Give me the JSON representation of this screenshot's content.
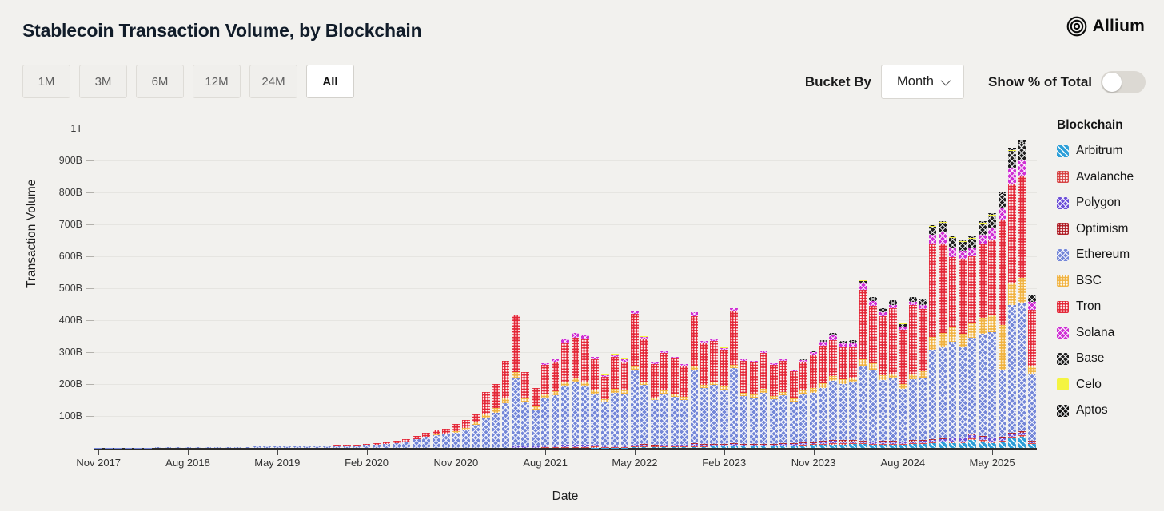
{
  "header": {
    "title": "Stablecoin Transaction Volume, by Blockchain",
    "brand": "Allium"
  },
  "toolbar": {
    "ranges": [
      "1M",
      "3M",
      "6M",
      "12M",
      "24M",
      "All"
    ],
    "active_range": "All",
    "bucket_by_label": "Bucket By",
    "bucket_value": "Month",
    "show_pct_label": "Show % of Total",
    "show_pct_on": false
  },
  "chart_data": {
    "type": "bar",
    "stacked": true,
    "title": "Stablecoin Transaction Volume, by Blockchain",
    "xlabel": "Date",
    "ylabel": "Transaction Volume",
    "y_unit": "billions_usd",
    "ylim": [
      0,
      1000
    ],
    "grid": true,
    "legend_title": "Blockchain",
    "legend_position": "right",
    "y_ticks": [
      {
        "value": 100,
        "label": "100B"
      },
      {
        "value": 200,
        "label": "200B"
      },
      {
        "value": 300,
        "label": "300B"
      },
      {
        "value": 400,
        "label": "400B"
      },
      {
        "value": 500,
        "label": "500B"
      },
      {
        "value": 600,
        "label": "600B"
      },
      {
        "value": 700,
        "label": "700B"
      },
      {
        "value": 800,
        "label": "800B"
      },
      {
        "value": 900,
        "label": "900B"
      },
      {
        "value": 1000,
        "label": "1T"
      }
    ],
    "x_tick_every": 9,
    "x_tick_labels": [
      "Nov 2017",
      "Aug 2018",
      "May 2019",
      "Feb 2020",
      "Nov 2020",
      "Aug 2021",
      "May 2022",
      "Feb 2023",
      "Nov 2023",
      "Aug 2024",
      "May 2025"
    ],
    "categories": [
      "Nov 2017",
      "Dec 2017",
      "Jan 2018",
      "Feb 2018",
      "Mar 2018",
      "Apr 2018",
      "May 2018",
      "Jun 2018",
      "Jul 2018",
      "Aug 2018",
      "Sep 2018",
      "Oct 2018",
      "Nov 2018",
      "Dec 2018",
      "Jan 2019",
      "Feb 2019",
      "Mar 2019",
      "Apr 2019",
      "May 2019",
      "Jun 2019",
      "Jul 2019",
      "Aug 2019",
      "Sep 2019",
      "Oct 2019",
      "Nov 2019",
      "Dec 2019",
      "Jan 2020",
      "Feb 2020",
      "Mar 2020",
      "Apr 2020",
      "May 2020",
      "Jun 2020",
      "Jul 2020",
      "Aug 2020",
      "Sep 2020",
      "Oct 2020",
      "Nov 2020",
      "Dec 2020",
      "Jan 2021",
      "Feb 2021",
      "Mar 2021",
      "Apr 2021",
      "May 2021",
      "Jun 2021",
      "Jul 2021",
      "Aug 2021",
      "Sep 2021",
      "Oct 2021",
      "Nov 2021",
      "Dec 2021",
      "Jan 2022",
      "Feb 2022",
      "Mar 2022",
      "Apr 2022",
      "May 2022",
      "Jun 2022",
      "Jul 2022",
      "Aug 2022",
      "Sep 2022",
      "Oct 2022",
      "Nov 2022",
      "Dec 2022",
      "Jan 2023",
      "Feb 2023",
      "Mar 2023",
      "Apr 2023",
      "May 2023",
      "Jun 2023",
      "Jul 2023",
      "Aug 2023",
      "Sep 2023",
      "Oct 2023",
      "Nov 2023",
      "Dec 2023",
      "Jan 2024",
      "Feb 2024",
      "Mar 2024",
      "Apr 2024",
      "May 2024",
      "Jun 2024",
      "Jul 2024",
      "Aug 2024",
      "Sep 2024",
      "Oct 2024",
      "Nov 2024",
      "Dec 2024",
      "Jan 2025",
      "Feb 2025",
      "Mar 2025",
      "Apr 2025",
      "May 2025",
      "Jun 2025",
      "Jul 2025",
      "Aug 2025",
      "Sep 2025"
    ],
    "series": [
      {
        "name": "Arbitrum",
        "color": "#2d9fd8",
        "pattern": "stripe",
        "values": [
          0,
          0,
          0,
          0,
          0,
          0,
          0,
          0,
          0,
          0,
          0,
          0,
          0,
          0,
          0,
          0,
          0,
          0,
          0,
          0,
          0,
          0,
          0,
          0,
          0,
          0,
          0,
          0,
          0,
          0,
          0,
          0,
          0,
          0,
          0,
          0,
          0,
          0,
          0,
          0,
          0,
          0,
          0,
          0,
          0,
          0,
          0,
          0,
          0,
          0,
          1,
          1,
          1,
          1,
          2,
          2,
          2,
          2,
          2,
          2,
          3,
          3,
          4,
          5,
          6,
          5,
          5,
          5,
          5,
          6,
          6,
          8,
          10,
          10,
          10,
          10,
          12,
          12,
          10,
          10,
          10,
          10,
          12,
          12,
          15,
          18,
          15,
          15,
          25,
          20,
          15,
          20,
          30,
          35,
          12
        ]
      },
      {
        "name": "Avalanche",
        "color": "#d64040",
        "pattern": "dots",
        "values": [
          0,
          0,
          0,
          0,
          0,
          0,
          0,
          0,
          0,
          0,
          0,
          0,
          0,
          0,
          0,
          0,
          0,
          0,
          0,
          0,
          0,
          0,
          0,
          0,
          0,
          0,
          0,
          0,
          0,
          0,
          0,
          0,
          0,
          0,
          0,
          0,
          0,
          0,
          0,
          0,
          0,
          0,
          0,
          0,
          0,
          2,
          2,
          3,
          3,
          3,
          3,
          2,
          2,
          2,
          2,
          3,
          2,
          2,
          3,
          3,
          3,
          3,
          2,
          2,
          2,
          2,
          2,
          2,
          2,
          2,
          2,
          2,
          2,
          3,
          4,
          4,
          3,
          3,
          3,
          3,
          3,
          3,
          3,
          3,
          3,
          3,
          4,
          4,
          5,
          4,
          4,
          3,
          4,
          4,
          2
        ]
      },
      {
        "name": "Polygon",
        "color": "#6d4fd8",
        "pattern": "cross",
        "values": [
          0,
          0,
          0,
          0,
          0,
          0,
          0,
          0,
          0,
          0,
          0,
          0,
          0,
          0,
          0,
          0,
          0,
          0,
          0,
          0,
          0,
          0,
          0,
          0,
          0,
          0,
          0,
          0,
          0,
          0,
          0,
          0,
          0,
          0,
          0,
          0,
          0,
          0,
          0,
          0,
          0,
          0,
          8,
          6,
          4,
          6,
          6,
          6,
          7,
          6,
          5,
          3,
          4,
          4,
          5,
          5,
          4,
          5,
          5,
          5,
          6,
          5,
          4,
          4,
          4,
          3,
          3,
          4,
          4,
          4,
          4,
          4,
          4,
          6,
          8,
          7,
          6,
          5,
          5,
          6,
          6,
          5,
          6,
          7,
          6,
          6,
          10,
          10,
          10,
          10,
          10,
          7,
          8,
          8,
          5
        ]
      },
      {
        "name": "Optimism",
        "color": "#ae1c24",
        "pattern": "dots",
        "values": [
          0,
          0,
          0,
          0,
          0,
          0,
          0,
          0,
          0,
          0,
          0,
          0,
          0,
          0,
          0,
          0,
          0,
          0,
          0,
          0,
          0,
          0,
          0,
          0,
          0,
          0,
          0,
          0,
          0,
          0,
          0,
          0,
          0,
          0,
          0,
          0,
          0,
          0,
          0,
          0,
          0,
          0,
          0,
          0,
          0,
          0,
          0,
          0,
          0,
          0,
          1,
          1,
          1,
          1,
          1,
          2,
          1,
          1,
          1,
          1,
          2,
          1,
          2,
          2,
          2,
          2,
          2,
          2,
          2,
          2,
          2,
          3,
          2,
          3,
          4,
          4,
          4,
          2,
          2,
          3,
          3,
          2,
          3,
          3,
          3,
          3,
          4,
          4,
          5,
          4,
          4,
          4,
          5,
          5,
          3
        ]
      },
      {
        "name": "Ethereum",
        "color": "#7487d8",
        "pattern": "cross",
        "values": [
          0.5,
          1,
          1,
          1,
          1,
          1,
          2,
          2,
          2,
          2,
          2,
          3,
          3,
          3,
          3,
          3,
          4,
          5,
          5,
          6,
          7,
          7,
          7,
          7,
          8,
          8,
          8,
          9,
          11,
          13,
          16,
          19,
          28,
          34,
          40,
          42,
          48,
          55,
          72,
          95,
          110,
          140,
          213,
          138,
          116,
          150,
          158,
          185,
          195,
          185,
          160,
          135,
          165,
          160,
          232,
          185,
          140,
          160,
          150,
          140,
          232,
          175,
          185,
          170,
          235,
          150,
          145,
          160,
          140,
          150,
          130,
          150,
          155,
          165,
          185,
          175,
          180,
          235,
          225,
          190,
          195,
          165,
          190,
          195,
          280,
          285,
          300,
          285,
          300,
          320,
          330,
          210,
          400,
          400,
          210
        ]
      },
      {
        "name": "BSC",
        "color": "#f0b23f",
        "pattern": "dots",
        "values": [
          0,
          0,
          0,
          0,
          0,
          0,
          0,
          0,
          0,
          0,
          0,
          0,
          0,
          0,
          0,
          0,
          0,
          0,
          0,
          0,
          0,
          0,
          0,
          0,
          0,
          0,
          0,
          0,
          0,
          0,
          0,
          0,
          0,
          1,
          2,
          3,
          5,
          8,
          10,
          12,
          14,
          18,
          17,
          12,
          10,
          12,
          12,
          14,
          15,
          14,
          12,
          10,
          12,
          12,
          12,
          10,
          8,
          10,
          10,
          10,
          12,
          10,
          10,
          10,
          12,
          10,
          10,
          12,
          10,
          12,
          10,
          12,
          14,
          15,
          15,
          15,
          15,
          20,
          20,
          15,
          15,
          15,
          18,
          20,
          40,
          45,
          45,
          40,
          45,
          50,
          55,
          140,
          70,
          80,
          25
        ]
      },
      {
        "name": "Tron",
        "color": "#e32636",
        "pattern": "dots",
        "values": [
          0,
          0,
          0,
          0,
          0,
          0,
          0,
          0,
          0,
          0,
          0,
          0,
          0,
          0,
          0,
          0,
          0,
          0,
          1,
          1,
          1,
          1,
          1,
          1,
          1,
          1,
          2,
          3,
          4,
          4,
          6,
          8,
          10,
          12,
          15,
          16,
          22,
          24,
          22,
          68,
          75,
          115,
          180,
          82,
          58,
          90,
          92,
          120,
          125,
          132,
          95,
          70,
          100,
          90,
          165,
          135,
          105,
          118,
          108,
          96,
          155,
          132,
          128,
          115,
          170,
          100,
          100,
          112,
          98,
          97,
          87,
          92,
          105,
          118,
          112,
          100,
          94,
          218,
          180,
          185,
          205,
          170,
          215,
          195,
          290,
          280,
          220,
          235,
          210,
          230,
          235,
          330,
          310,
          320,
          175
        ]
      },
      {
        "name": "Solana",
        "color": "#cf2fd4",
        "pattern": "cross",
        "values": [
          0,
          0,
          0,
          0,
          0,
          0,
          0,
          0,
          0,
          0,
          0,
          0,
          0,
          0,
          0,
          0,
          0,
          0,
          0,
          0,
          0,
          0,
          0,
          0,
          0,
          0,
          0,
          0,
          0,
          0,
          0,
          0,
          0,
          0,
          0,
          0,
          0,
          0,
          0,
          0,
          0,
          0,
          0,
          0,
          0,
          5,
          8,
          12,
          15,
          12,
          8,
          6,
          8,
          8,
          10,
          6,
          5,
          6,
          5,
          5,
          12,
          6,
          5,
          5,
          6,
          5,
          5,
          5,
          4,
          4,
          4,
          5,
          8,
          12,
          15,
          12,
          15,
          20,
          15,
          12,
          10,
          8,
          10,
          12,
          30,
          35,
          30,
          25,
          25,
          30,
          35,
          38,
          48,
          47,
          25
        ]
      },
      {
        "name": "Base",
        "color": "#202020",
        "pattern": "cross",
        "values": [
          0,
          0,
          0,
          0,
          0,
          0,
          0,
          0,
          0,
          0,
          0,
          0,
          0,
          0,
          0,
          0,
          0,
          0,
          0,
          0,
          0,
          0,
          0,
          0,
          0,
          0,
          0,
          0,
          0,
          0,
          0,
          0,
          0,
          0,
          0,
          0,
          0,
          0,
          0,
          0,
          0,
          0,
          0,
          0,
          0,
          0,
          0,
          0,
          0,
          0,
          0,
          0,
          0,
          0,
          0,
          0,
          0,
          0,
          0,
          0,
          0,
          0,
          0,
          0,
          0,
          0,
          0,
          0,
          0,
          0,
          0,
          1,
          2,
          3,
          4,
          5,
          6,
          8,
          10,
          10,
          12,
          10,
          12,
          15,
          25,
          30,
          30,
          28,
          30,
          35,
          40,
          42,
          55,
          55,
          20
        ]
      },
      {
        "name": "Celo",
        "color": "#f4f441",
        "pattern": "solid",
        "values": [
          0,
          0,
          0,
          0,
          0,
          0,
          0,
          0,
          0,
          0,
          0,
          0,
          0,
          0,
          0,
          0,
          0,
          0,
          0,
          0,
          0,
          0,
          0,
          0,
          0,
          0,
          0,
          0,
          0,
          0,
          0,
          0,
          0,
          0,
          0,
          0,
          0,
          0,
          0,
          0,
          0,
          0,
          0,
          0,
          0,
          0,
          0,
          0,
          0,
          0,
          1,
          1,
          1,
          1,
          1,
          1,
          1,
          1,
          1,
          1,
          1,
          1,
          1,
          1,
          1,
          1,
          1,
          1,
          1,
          1,
          1,
          1,
          1,
          1,
          1,
          1,
          1,
          1,
          1,
          1,
          1,
          1,
          1,
          1,
          2,
          2,
          2,
          2,
          2,
          2,
          2,
          2,
          2,
          2,
          1
        ]
      },
      {
        "name": "Aptos",
        "color": "#161616",
        "pattern": "cross",
        "values": [
          0,
          0,
          0,
          0,
          0,
          0,
          0,
          0,
          0,
          0,
          0,
          0,
          0,
          0,
          0,
          0,
          0,
          0,
          0,
          0,
          0,
          0,
          0,
          0,
          0,
          0,
          0,
          0,
          0,
          0,
          0,
          0,
          0,
          0,
          0,
          0,
          0,
          0,
          0,
          0,
          0,
          0,
          0,
          0,
          0,
          0,
          0,
          0,
          0,
          0,
          0,
          0,
          0,
          0,
          0,
          0,
          0,
          0,
          0,
          0,
          0,
          0,
          0,
          0,
          0,
          0,
          0,
          0,
          0,
          0,
          0,
          0,
          1,
          1,
          2,
          2,
          2,
          2,
          2,
          2,
          2,
          2,
          2,
          3,
          4,
          4,
          4,
          4,
          5,
          5,
          5,
          5,
          8,
          8,
          3
        ]
      }
    ]
  }
}
